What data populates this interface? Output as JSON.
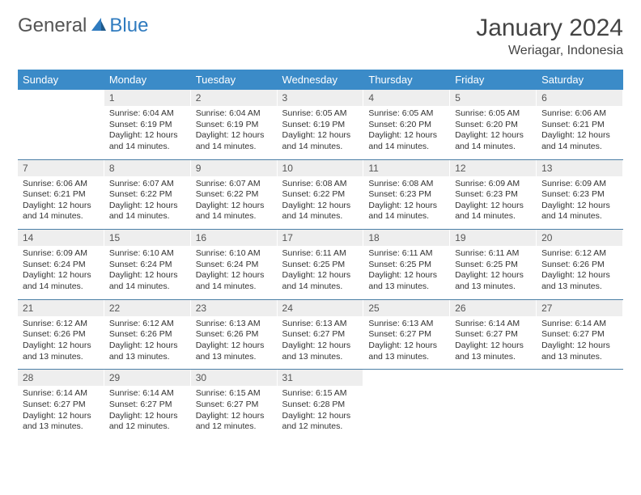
{
  "brand": {
    "part1": "General",
    "part2": "Blue"
  },
  "title": "January 2024",
  "location": "Weriagar, Indonesia",
  "colors": {
    "header_bg": "#3b8bc8",
    "header_text": "#ffffff",
    "daynum_bg": "#eeeeee",
    "separator": "#4b7fa6",
    "logo_gray": "#555555",
    "logo_blue": "#2f7bbf",
    "body_text": "#333333"
  },
  "weekdays": [
    "Sunday",
    "Monday",
    "Tuesday",
    "Wednesday",
    "Thursday",
    "Friday",
    "Saturday"
  ],
  "weeks": [
    [
      null,
      {
        "n": 1,
        "sr": "6:04 AM",
        "ss": "6:19 PM",
        "dl": "12 hours and 14 minutes."
      },
      {
        "n": 2,
        "sr": "6:04 AM",
        "ss": "6:19 PM",
        "dl": "12 hours and 14 minutes."
      },
      {
        "n": 3,
        "sr": "6:05 AM",
        "ss": "6:19 PM",
        "dl": "12 hours and 14 minutes."
      },
      {
        "n": 4,
        "sr": "6:05 AM",
        "ss": "6:20 PM",
        "dl": "12 hours and 14 minutes."
      },
      {
        "n": 5,
        "sr": "6:05 AM",
        "ss": "6:20 PM",
        "dl": "12 hours and 14 minutes."
      },
      {
        "n": 6,
        "sr": "6:06 AM",
        "ss": "6:21 PM",
        "dl": "12 hours and 14 minutes."
      }
    ],
    [
      {
        "n": 7,
        "sr": "6:06 AM",
        "ss": "6:21 PM",
        "dl": "12 hours and 14 minutes."
      },
      {
        "n": 8,
        "sr": "6:07 AM",
        "ss": "6:22 PM",
        "dl": "12 hours and 14 minutes."
      },
      {
        "n": 9,
        "sr": "6:07 AM",
        "ss": "6:22 PM",
        "dl": "12 hours and 14 minutes."
      },
      {
        "n": 10,
        "sr": "6:08 AM",
        "ss": "6:22 PM",
        "dl": "12 hours and 14 minutes."
      },
      {
        "n": 11,
        "sr": "6:08 AM",
        "ss": "6:23 PM",
        "dl": "12 hours and 14 minutes."
      },
      {
        "n": 12,
        "sr": "6:09 AM",
        "ss": "6:23 PM",
        "dl": "12 hours and 14 minutes."
      },
      {
        "n": 13,
        "sr": "6:09 AM",
        "ss": "6:23 PM",
        "dl": "12 hours and 14 minutes."
      }
    ],
    [
      {
        "n": 14,
        "sr": "6:09 AM",
        "ss": "6:24 PM",
        "dl": "12 hours and 14 minutes."
      },
      {
        "n": 15,
        "sr": "6:10 AM",
        "ss": "6:24 PM",
        "dl": "12 hours and 14 minutes."
      },
      {
        "n": 16,
        "sr": "6:10 AM",
        "ss": "6:24 PM",
        "dl": "12 hours and 14 minutes."
      },
      {
        "n": 17,
        "sr": "6:11 AM",
        "ss": "6:25 PM",
        "dl": "12 hours and 14 minutes."
      },
      {
        "n": 18,
        "sr": "6:11 AM",
        "ss": "6:25 PM",
        "dl": "12 hours and 13 minutes."
      },
      {
        "n": 19,
        "sr": "6:11 AM",
        "ss": "6:25 PM",
        "dl": "12 hours and 13 minutes."
      },
      {
        "n": 20,
        "sr": "6:12 AM",
        "ss": "6:26 PM",
        "dl": "12 hours and 13 minutes."
      }
    ],
    [
      {
        "n": 21,
        "sr": "6:12 AM",
        "ss": "6:26 PM",
        "dl": "12 hours and 13 minutes."
      },
      {
        "n": 22,
        "sr": "6:12 AM",
        "ss": "6:26 PM",
        "dl": "12 hours and 13 minutes."
      },
      {
        "n": 23,
        "sr": "6:13 AM",
        "ss": "6:26 PM",
        "dl": "12 hours and 13 minutes."
      },
      {
        "n": 24,
        "sr": "6:13 AM",
        "ss": "6:27 PM",
        "dl": "12 hours and 13 minutes."
      },
      {
        "n": 25,
        "sr": "6:13 AM",
        "ss": "6:27 PM",
        "dl": "12 hours and 13 minutes."
      },
      {
        "n": 26,
        "sr": "6:14 AM",
        "ss": "6:27 PM",
        "dl": "12 hours and 13 minutes."
      },
      {
        "n": 27,
        "sr": "6:14 AM",
        "ss": "6:27 PM",
        "dl": "12 hours and 13 minutes."
      }
    ],
    [
      {
        "n": 28,
        "sr": "6:14 AM",
        "ss": "6:27 PM",
        "dl": "12 hours and 13 minutes."
      },
      {
        "n": 29,
        "sr": "6:14 AM",
        "ss": "6:27 PM",
        "dl": "12 hours and 12 minutes."
      },
      {
        "n": 30,
        "sr": "6:15 AM",
        "ss": "6:27 PM",
        "dl": "12 hours and 12 minutes."
      },
      {
        "n": 31,
        "sr": "6:15 AM",
        "ss": "6:28 PM",
        "dl": "12 hours and 12 minutes."
      },
      null,
      null,
      null
    ]
  ],
  "labels": {
    "sunrise": "Sunrise:",
    "sunset": "Sunset:",
    "daylight": "Daylight:"
  }
}
